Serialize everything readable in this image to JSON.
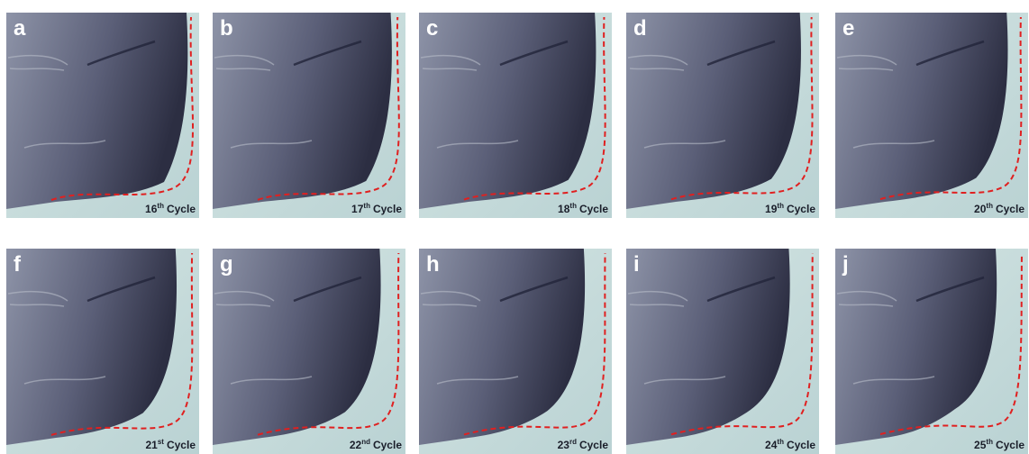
{
  "panels": [
    {
      "letter": "a",
      "number": "16",
      "suffix": "th",
      "word": "Cycle"
    },
    {
      "letter": "b",
      "number": "17",
      "suffix": "th",
      "word": "Cycle"
    },
    {
      "letter": "c",
      "number": "18",
      "suffix": "th",
      "word": "Cycle"
    },
    {
      "letter": "d",
      "number": "19",
      "suffix": "th",
      "word": "Cycle"
    },
    {
      "letter": "e",
      "number": "20",
      "suffix": "th",
      "word": "Cycle"
    },
    {
      "letter": "f",
      "number": "21",
      "suffix": "st",
      "word": "Cycle"
    },
    {
      "letter": "g",
      "number": "22",
      "suffix": "nd",
      "word": "Cycle"
    },
    {
      "letter": "h",
      "number": "23",
      "suffix": "rd",
      "word": "Cycle"
    },
    {
      "letter": "i",
      "number": "24",
      "suffix": "th",
      "word": "Cycle"
    },
    {
      "letter": "j",
      "number": "25",
      "suffix": "th",
      "word": "Cycle"
    }
  ]
}
